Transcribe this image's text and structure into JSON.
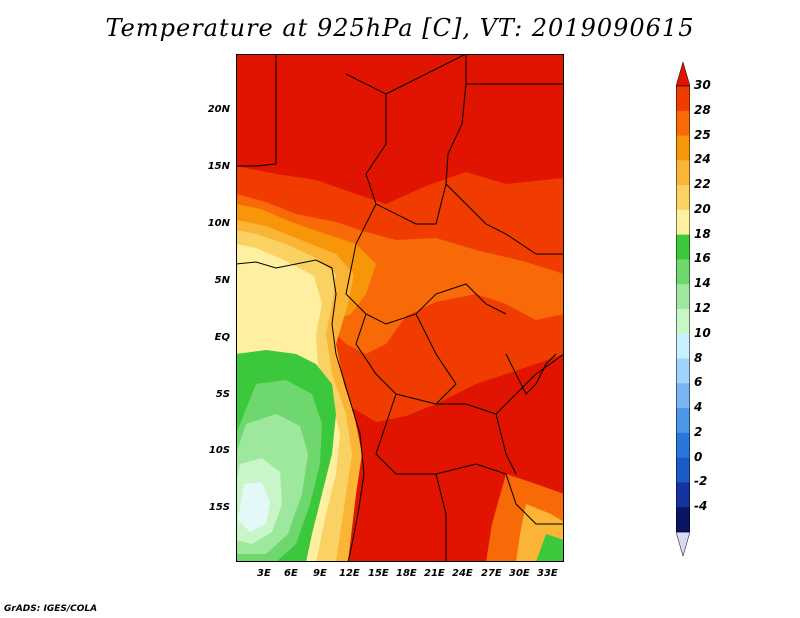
{
  "title": "Temperature at 925hPa [C], VT: 2019090615",
  "footer": "GrADS: IGES/COLA",
  "map": {
    "lat_labels": [
      "20N",
      "15N",
      "10N",
      "5N",
      "EQ",
      "5S",
      "10S",
      "15S"
    ],
    "lon_labels": [
      "3E",
      "6E",
      "9E",
      "12E",
      "15E",
      "18E",
      "21E",
      "24E",
      "27E",
      "30E",
      "33E"
    ]
  },
  "colorbar": {
    "labels": [
      "30",
      "28",
      "25",
      "24",
      "22",
      "20",
      "18",
      "16",
      "14",
      "12",
      "10",
      "8",
      "6",
      "4",
      "2",
      "0",
      "-2",
      "-4"
    ],
    "colors": [
      "#e01400",
      "#f03c00",
      "#f86a08",
      "#f8960a",
      "#fab436",
      "#fad264",
      "#fef0a0",
      "#3cc83c",
      "#6ed86e",
      "#9ee89e",
      "#c8f6c8",
      "#c8f0ff",
      "#a0d2fa",
      "#78b4f0",
      "#4c96e6",
      "#2878dc",
      "#1c5ac8",
      "#1432a0",
      "#0a1464",
      "#d8d8f8"
    ]
  }
}
